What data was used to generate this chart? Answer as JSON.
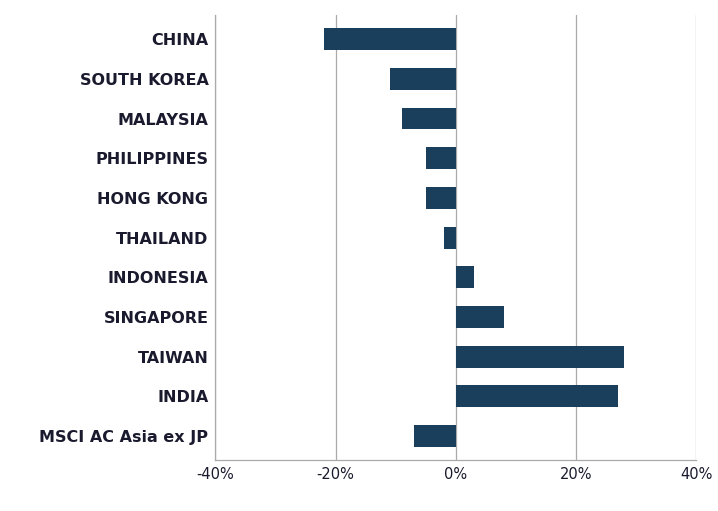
{
  "categories": [
    "CHINA",
    "SOUTH KOREA",
    "MALAYSIA",
    "PHILIPPINES",
    "HONG KONG",
    "THAILAND",
    "INDONESIA",
    "SINGAPORE",
    "TAIWAN",
    "INDIA",
    "MSCI AC Asia ex JP"
  ],
  "values": [
    -22,
    -11,
    -9,
    -5,
    -5,
    -2,
    3,
    8,
    28,
    27,
    -7
  ],
  "bar_color": "#1a3f5c",
  "xlim": [
    -40,
    40
  ],
  "xticks": [
    -40,
    -20,
    0,
    20,
    40
  ],
  "xtick_labels": [
    "-40%",
    "-20%",
    "0%",
    "20%",
    "40%"
  ],
  "grid_color": "#aaaaaa",
  "background_color": "#ffffff",
  "bar_height": 0.55,
  "label_fontsize": 11.5,
  "tick_fontsize": 10.5,
  "label_color": "#1a1a2e"
}
